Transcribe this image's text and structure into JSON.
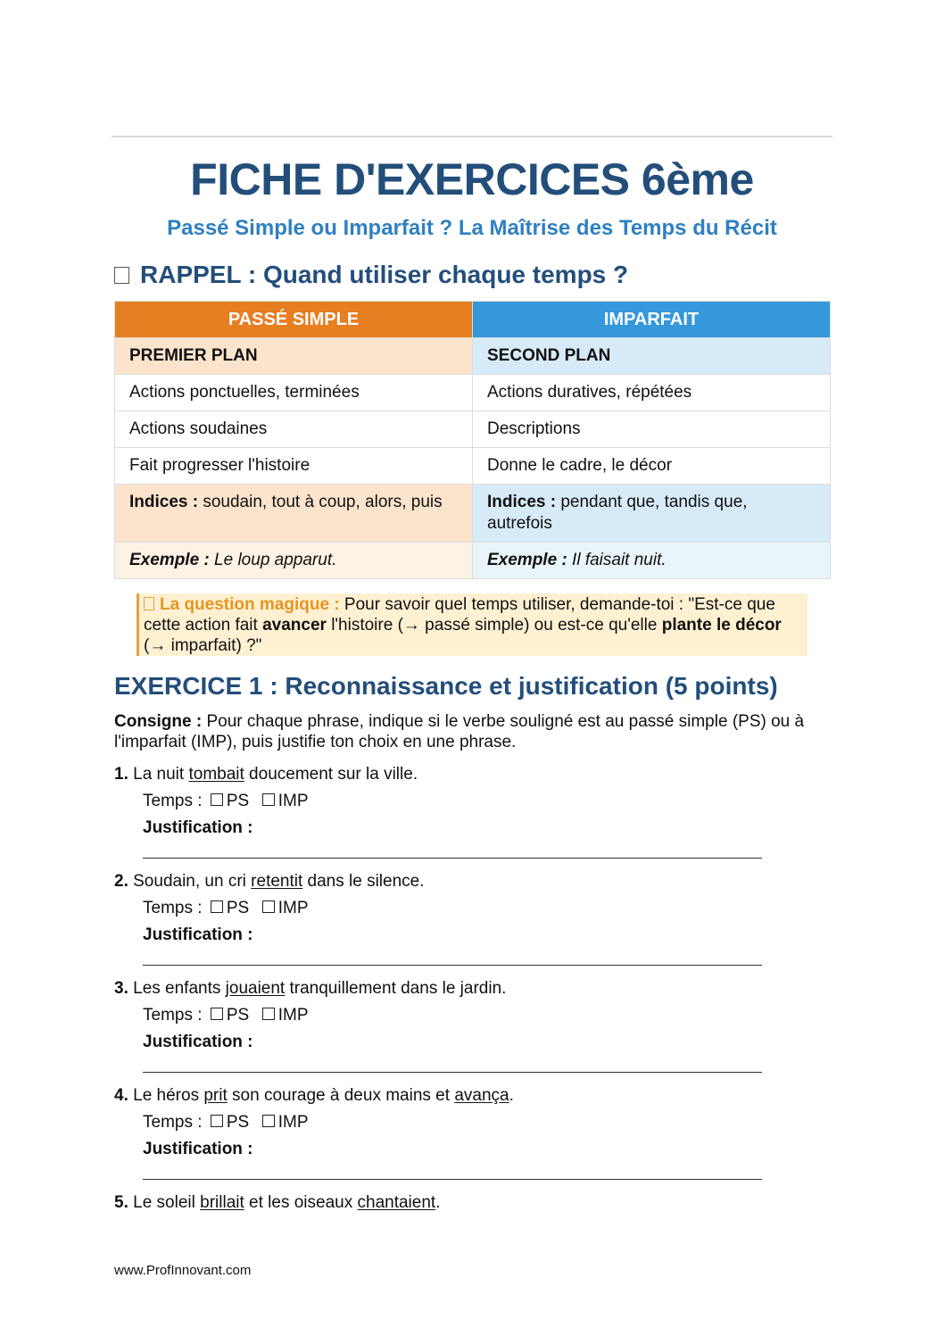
{
  "title": "FICHE D'EXERCICES 6ème",
  "subtitle": "Passé Simple ou Imparfait ? La Maîtrise des Temps du Récit",
  "rappel": {
    "heading": "RAPPEL : Quand utiliser chaque temps ?",
    "table": {
      "headers": [
        "PASSÉ SIMPLE",
        "IMPARFAIT"
      ],
      "subheaders": [
        "PREMIER PLAN",
        "SECOND PLAN"
      ],
      "rows": [
        [
          "Actions ponctuelles, terminées",
          "Actions duratives, répétées"
        ],
        [
          "Actions soudaines",
          "Descriptions"
        ],
        [
          "Fait progresser l'histoire",
          "Donne le cadre, le décor"
        ]
      ],
      "indices_label": "Indices :",
      "indices": [
        "soudain, tout à coup, alors, puis",
        "pendant que, tandis que, autrefois"
      ],
      "exemple_label": "Exemple :",
      "exemples": [
        "Le loup apparut.",
        "Il faisait nuit."
      ]
    },
    "colors": {
      "ps": "#e67e22",
      "imp": "#3498db",
      "heading": "#234e7a"
    }
  },
  "callout": {
    "label": "La question magique :",
    "text1": " Pour savoir quel temps utiliser, demande-toi : \"Est-ce que cette action fait ",
    "bold1": "avancer",
    "text2": " l'histoire (→ passé simple) ou est-ce qu'elle ",
    "bold2": "plante le décor",
    "text3": " (→ imparfait) ?\""
  },
  "exercise1": {
    "heading": "EXERCICE 1 : Reconnaissance et justification (5 points)",
    "consigne_label": "Consigne :",
    "consigne": " Pour chaque phrase, indique si le verbe souligné est au passé simple (PS) ou à l'imparfait (IMP), puis justifie ton choix en une phrase.",
    "temps_label": "Temps :",
    "option_ps": "PS",
    "option_imp": "IMP",
    "justification_label": "Justification :",
    "questions": [
      {
        "num": "1.",
        "parts": [
          {
            "t": " La nuit "
          },
          {
            "t": "tombait",
            "u": true
          },
          {
            "t": " doucement sur la ville."
          }
        ]
      },
      {
        "num": "2.",
        "parts": [
          {
            "t": " Soudain, un cri "
          },
          {
            "t": "retentit",
            "u": true
          },
          {
            "t": " dans le silence."
          }
        ]
      },
      {
        "num": "3.",
        "parts": [
          {
            "t": " Les enfants "
          },
          {
            "t": "jouaient",
            "u": true
          },
          {
            "t": " tranquillement dans le jardin."
          }
        ]
      },
      {
        "num": "4.",
        "parts": [
          {
            "t": " Le héros "
          },
          {
            "t": "prit",
            "u": true
          },
          {
            "t": " son courage à deux mains et "
          },
          {
            "t": "avança",
            "u": true
          },
          {
            "t": "."
          }
        ]
      },
      {
        "num": "5.",
        "parts": [
          {
            "t": " Le soleil "
          },
          {
            "t": "brillait",
            "u": true
          },
          {
            "t": " et les oiseaux "
          },
          {
            "t": "chantaient",
            "u": true
          },
          {
            "t": "."
          }
        ]
      }
    ]
  },
  "footer": "www.ProfInnovant.com"
}
